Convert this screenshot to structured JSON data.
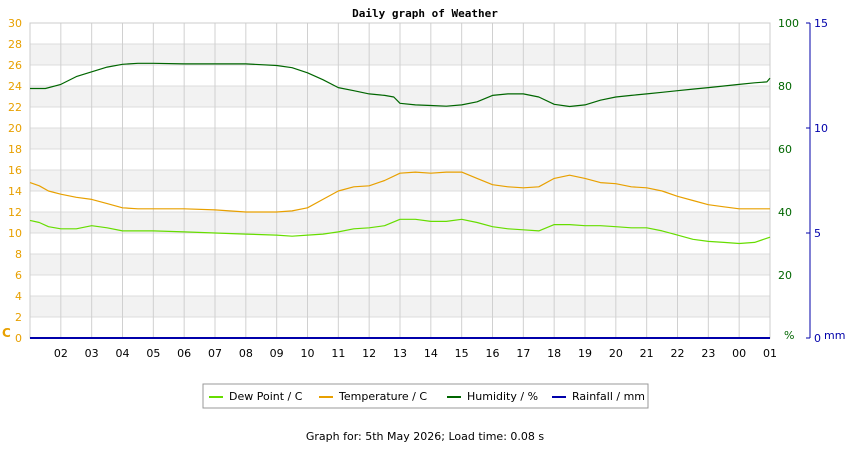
{
  "chart_data": {
    "type": "line",
    "title": "Daily graph of Weather",
    "x_ticks": [
      "02",
      "03",
      "04",
      "05",
      "06",
      "07",
      "08",
      "09",
      "10",
      "11",
      "12",
      "13",
      "14",
      "15",
      "16",
      "17",
      "18",
      "19",
      "20",
      "21",
      "22",
      "23",
      "00",
      "01"
    ],
    "x_range": [
      1.0,
      25.0
    ],
    "axes": {
      "left": {
        "unit": "C",
        "min": 0,
        "max": 30,
        "ticks": [
          0,
          2,
          4,
          6,
          8,
          10,
          12,
          14,
          16,
          18,
          20,
          22,
          24,
          26,
          28,
          30
        ],
        "color": "#e8a000"
      },
      "right1": {
        "unit": "%",
        "min": 0,
        "max": 100,
        "ticks": [
          0,
          20,
          40,
          60,
          80,
          100
        ],
        "color": "#006600"
      },
      "right2": {
        "unit": "mm",
        "min": 0,
        "max": 15,
        "ticks": [
          0,
          5,
          10,
          15
        ],
        "color": "#0000aa"
      }
    },
    "grid": true,
    "legend_position": "bottom",
    "series": [
      {
        "name": "Dew Point / C",
        "axis": "left",
        "color": "#66dd00",
        "x": [
          1.0,
          1.3,
          1.6,
          2.0,
          2.5,
          3.0,
          3.5,
          4.0,
          4.5,
          5.0,
          6.0,
          7.0,
          8.0,
          9.0,
          9.5,
          10.0,
          10.5,
          11.0,
          11.5,
          12.0,
          12.5,
          13.0,
          13.5,
          14.0,
          14.5,
          15.0,
          15.5,
          16.0,
          16.5,
          17.0,
          17.5,
          18.0,
          18.5,
          19.0,
          19.5,
          20.0,
          20.5,
          21.0,
          21.5,
          22.0,
          22.5,
          23.0,
          23.5,
          24.0,
          24.5,
          25.0
        ],
        "y": [
          11.2,
          11.0,
          10.6,
          10.4,
          10.4,
          10.7,
          10.5,
          10.2,
          10.2,
          10.2,
          10.1,
          10.0,
          9.9,
          9.8,
          9.7,
          9.8,
          9.9,
          10.1,
          10.4,
          10.5,
          10.7,
          11.3,
          11.3,
          11.1,
          11.1,
          11.3,
          11.0,
          10.6,
          10.4,
          10.3,
          10.2,
          10.8,
          10.8,
          10.7,
          10.7,
          10.6,
          10.5,
          10.5,
          10.2,
          9.8,
          9.4,
          9.2,
          9.1,
          9.0,
          9.1,
          9.6
        ]
      },
      {
        "name": "Temperature / C",
        "axis": "left",
        "color": "#e8a000",
        "x": [
          1.0,
          1.3,
          1.6,
          2.0,
          2.5,
          3.0,
          3.5,
          4.0,
          4.5,
          5.0,
          6.0,
          7.0,
          8.0,
          9.0,
          9.5,
          10.0,
          10.5,
          11.0,
          11.5,
          12.0,
          12.5,
          13.0,
          13.5,
          14.0,
          14.5,
          15.0,
          15.5,
          16.0,
          16.5,
          17.0,
          17.5,
          18.0,
          18.5,
          19.0,
          19.5,
          20.0,
          20.5,
          21.0,
          21.5,
          22.0,
          22.5,
          23.0,
          23.5,
          24.0,
          24.5,
          25.0
        ],
        "y": [
          14.8,
          14.5,
          14.0,
          13.7,
          13.4,
          13.2,
          12.8,
          12.4,
          12.3,
          12.3,
          12.3,
          12.2,
          12.0,
          12.0,
          12.1,
          12.4,
          13.2,
          14.0,
          14.4,
          14.5,
          15.0,
          15.7,
          15.8,
          15.7,
          15.8,
          15.8,
          15.2,
          14.6,
          14.4,
          14.3,
          14.4,
          15.2,
          15.5,
          15.2,
          14.8,
          14.7,
          14.4,
          14.3,
          14.0,
          13.5,
          13.1,
          12.7,
          12.5,
          12.3,
          12.3,
          12.3
        ]
      },
      {
        "name": "Humidity / %",
        "axis": "right1",
        "color": "#006600",
        "x": [
          1.0,
          1.5,
          2.0,
          2.5,
          3.0,
          3.5,
          4.0,
          4.5,
          5.0,
          6.0,
          7.0,
          8.0,
          9.0,
          9.5,
          10.0,
          10.5,
          11.0,
          11.5,
          12.0,
          12.5,
          12.8,
          13.0,
          13.5,
          14.0,
          14.5,
          15.0,
          15.5,
          16.0,
          16.5,
          17.0,
          17.5,
          18.0,
          18.5,
          19.0,
          19.5,
          20.0,
          20.5,
          21.0,
          21.5,
          22.0,
          22.5,
          23.0,
          23.5,
          24.0,
          24.5,
          24.9,
          25.0
        ],
        "y": [
          79.2,
          79.2,
          80.5,
          83.0,
          84.5,
          86.0,
          86.9,
          87.2,
          87.2,
          87.0,
          87.0,
          87.0,
          86.5,
          85.8,
          84.2,
          82.0,
          79.5,
          78.5,
          77.5,
          77.0,
          76.5,
          74.5,
          74.0,
          73.8,
          73.6,
          74.0,
          75.0,
          77.0,
          77.5,
          77.5,
          76.5,
          74.2,
          73.5,
          74.0,
          75.5,
          76.5,
          77.0,
          77.5,
          78.0,
          78.5,
          79.0,
          79.5,
          80.0,
          80.5,
          81.0,
          81.3,
          82.5
        ]
      },
      {
        "name": "Rainfall / mm",
        "axis": "right2",
        "color": "#0000aa",
        "x": [
          1.0,
          25.0
        ],
        "y": [
          0,
          0
        ]
      }
    ]
  },
  "footer": "Graph for: 5th May 2026; Load time: 0.08 s"
}
